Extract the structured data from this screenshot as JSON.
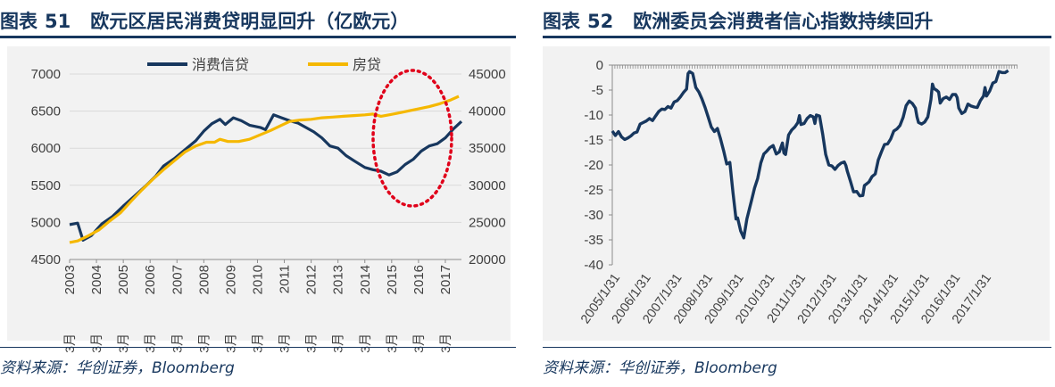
{
  "left_panel": {
    "title_prefix": "图表",
    "title_number": "51",
    "title_text": "欧元区居民消费贷明显回升（亿欧元）",
    "source": "资料来源：华创证券，Bloomberg"
  },
  "right_panel": {
    "title_prefix": "图表",
    "title_number": "52",
    "title_text": "欧洲委员会消费者信心指数持续回升",
    "source": "资料来源：华创证券，Bloomberg"
  },
  "colors": {
    "navy": "#17375e",
    "gold": "#f5b800",
    "annotation_red": "#e0001a",
    "grid": "#d9d9d9",
    "plot_bg": "#f2f2f2"
  },
  "chart_data": [
    {
      "type": "line",
      "title": "欧元区居民消费贷明显回升（亿欧元）",
      "x": [
        "3月 2003",
        "3月 2004",
        "3月 2005",
        "3月 2006",
        "3月 2007",
        "3月 2008",
        "3月 2009",
        "3月 2010",
        "3月 2011",
        "3月 2012",
        "3月 2013",
        "3月 2014",
        "3月 2015",
        "3月 2016",
        "3月 2017"
      ],
      "x_tick_years": [
        "2003",
        "2004",
        "2005",
        "2006",
        "2007",
        "2008",
        "2009",
        "2010",
        "2011",
        "2012",
        "2013",
        "2014",
        "2015",
        "2016",
        "2017"
      ],
      "x_tick_month": "3月",
      "x_range": [
        2003.0,
        2017.6
      ],
      "ylim_left": [
        4500,
        7000
      ],
      "yticks_left": [
        4500,
        5000,
        5500,
        6000,
        6500,
        7000
      ],
      "ylim_right": [
        20000,
        45000
      ],
      "yticks_right": [
        20000,
        25000,
        30000,
        35000,
        40000,
        45000
      ],
      "legend": [
        "消费信贷",
        "房贷"
      ],
      "legend_position": "top-center",
      "series": [
        {
          "name": "消费信贷",
          "axis": "left",
          "color": "#17375e",
          "points": [
            [
              2003.0,
              4970
            ],
            [
              2003.3,
              4990
            ],
            [
              2003.5,
              4760
            ],
            [
              2003.8,
              4820
            ],
            [
              2004.2,
              4980
            ],
            [
              2004.6,
              5080
            ],
            [
              2005.0,
              5220
            ],
            [
              2005.4,
              5350
            ],
            [
              2005.8,
              5480
            ],
            [
              2006.2,
              5620
            ],
            [
              2006.5,
              5760
            ],
            [
              2006.9,
              5860
            ],
            [
              2007.3,
              5980
            ],
            [
              2007.7,
              6100
            ],
            [
              2008.0,
              6230
            ],
            [
              2008.3,
              6330
            ],
            [
              2008.6,
              6390
            ],
            [
              2008.8,
              6320
            ],
            [
              2009.1,
              6410
            ],
            [
              2009.4,
              6370
            ],
            [
              2009.7,
              6310
            ],
            [
              2010.1,
              6280
            ],
            [
              2010.3,
              6250
            ],
            [
              2010.6,
              6450
            ],
            [
              2010.9,
              6410
            ],
            [
              2011.2,
              6370
            ],
            [
              2011.5,
              6340
            ],
            [
              2011.8,
              6280
            ],
            [
              2012.1,
              6220
            ],
            [
              2012.4,
              6140
            ],
            [
              2012.7,
              6030
            ],
            [
              2013.0,
              6000
            ],
            [
              2013.3,
              5900
            ],
            [
              2013.6,
              5830
            ],
            [
              2014.0,
              5740
            ],
            [
              2014.3,
              5710
            ],
            [
              2014.6,
              5690
            ],
            [
              2014.9,
              5640
            ],
            [
              2015.2,
              5680
            ],
            [
              2015.5,
              5780
            ],
            [
              2015.8,
              5850
            ],
            [
              2016.1,
              5960
            ],
            [
              2016.4,
              6030
            ],
            [
              2016.7,
              6060
            ],
            [
              2017.0,
              6140
            ],
            [
              2017.3,
              6260
            ],
            [
              2017.6,
              6360
            ]
          ]
        },
        {
          "name": "房贷",
          "axis": "right",
          "color": "#f5b800",
          "points": [
            [
              2003.0,
              22300
            ],
            [
              2003.3,
              22500
            ],
            [
              2003.7,
              23200
            ],
            [
              2004.1,
              24000
            ],
            [
              2004.5,
              25200
            ],
            [
              2004.9,
              26300
            ],
            [
              2005.3,
              27900
            ],
            [
              2005.7,
              29400
            ],
            [
              2006.1,
              30800
            ],
            [
              2006.5,
              32100
            ],
            [
              2006.9,
              33300
            ],
            [
              2007.3,
              34500
            ],
            [
              2007.7,
              35300
            ],
            [
              2008.1,
              35800
            ],
            [
              2008.4,
              35800
            ],
            [
              2008.6,
              36200
            ],
            [
              2008.9,
              35900
            ],
            [
              2009.3,
              35900
            ],
            [
              2009.7,
              36200
            ],
            [
              2010.1,
              36800
            ],
            [
              2010.5,
              37400
            ],
            [
              2010.9,
              38100
            ],
            [
              2011.2,
              38600
            ],
            [
              2011.6,
              38800
            ],
            [
              2012.0,
              38900
            ],
            [
              2012.4,
              39100
            ],
            [
              2012.8,
              39200
            ],
            [
              2013.2,
              39300
            ],
            [
              2013.6,
              39400
            ],
            [
              2014.0,
              39500
            ],
            [
              2014.3,
              39600
            ],
            [
              2014.6,
              39300
            ],
            [
              2014.9,
              39500
            ],
            [
              2015.2,
              39700
            ],
            [
              2015.6,
              40000
            ],
            [
              2016.0,
              40300
            ],
            [
              2016.4,
              40600
            ],
            [
              2016.8,
              41000
            ],
            [
              2017.2,
              41500
            ],
            [
              2017.5,
              42000
            ]
          ]
        }
      ],
      "annotation": "dotted red ellipse around the 2014–2017 rebound"
    },
    {
      "type": "line",
      "title": "欧洲委员会消费者信心指数持续回升",
      "x_tick_labels": [
        "2005/1/31",
        "2006/1/31",
        "2007/1/31",
        "2008/1/31",
        "2009/1/31",
        "2010/1/31",
        "2011/1/31",
        "2012/1/31",
        "2013/1/31",
        "2014/1/31",
        "2015/1/31",
        "2016/1/31",
        "2017/1/31"
      ],
      "x_range": [
        2005.0,
        2018.1
      ],
      "ylim": [
        -40,
        0
      ],
      "yticks": [
        0,
        -5,
        -10,
        -15,
        -20,
        -25,
        -30,
        -35,
        -40
      ],
      "series": [
        {
          "name": "消费者信心指数",
          "color": "#17375e",
          "points": [
            [
              2005.0,
              -13.2
            ],
            [
              2005.1,
              -14.1
            ],
            [
              2005.2,
              -13.3
            ],
            [
              2005.3,
              -14.4
            ],
            [
              2005.4,
              -14.9
            ],
            [
              2005.5,
              -14.6
            ],
            [
              2005.6,
              -14.2
            ],
            [
              2005.7,
              -13.6
            ],
            [
              2005.8,
              -13.4
            ],
            [
              2005.9,
              -11.8
            ],
            [
              2006.0,
              -11.5
            ],
            [
              2006.1,
              -11.2
            ],
            [
              2006.2,
              -10.7
            ],
            [
              2006.3,
              -11.1
            ],
            [
              2006.4,
              -10.2
            ],
            [
              2006.5,
              -9.3
            ],
            [
              2006.6,
              -8.8
            ],
            [
              2006.7,
              -8.9
            ],
            [
              2006.8,
              -8.3
            ],
            [
              2006.9,
              -8.6
            ],
            [
              2007.0,
              -7.4
            ],
            [
              2007.1,
              -7.1
            ],
            [
              2007.2,
              -6.4
            ],
            [
              2007.3,
              -5.5
            ],
            [
              2007.4,
              -4.8
            ],
            [
              2007.45,
              -1.7
            ],
            [
              2007.5,
              -1.3
            ],
            [
              2007.6,
              -1.7
            ],
            [
              2007.7,
              -4.5
            ],
            [
              2007.8,
              -5.4
            ],
            [
              2007.9,
              -6.8
            ],
            [
              2008.0,
              -8.5
            ],
            [
              2008.1,
              -10.4
            ],
            [
              2008.2,
              -12.4
            ],
            [
              2008.3,
              -13.3
            ],
            [
              2008.4,
              -12.7
            ],
            [
              2008.5,
              -14.8
            ],
            [
              2008.6,
              -17.2
            ],
            [
              2008.7,
              -19.8
            ],
            [
              2008.8,
              -19.5
            ],
            [
              2008.9,
              -25.5
            ],
            [
              2009.0,
              -30.8
            ],
            [
              2009.05,
              -30.6
            ],
            [
              2009.15,
              -33.2
            ],
            [
              2009.25,
              -34.6
            ],
            [
              2009.35,
              -30.8
            ],
            [
              2009.5,
              -27.1
            ],
            [
              2009.6,
              -24.6
            ],
            [
              2009.7,
              -22.7
            ],
            [
              2009.8,
              -19.6
            ],
            [
              2009.9,
              -17.8
            ],
            [
              2010.0,
              -17.2
            ],
            [
              2010.1,
              -16.5
            ],
            [
              2010.2,
              -16.1
            ],
            [
              2010.3,
              -17.8
            ],
            [
              2010.4,
              -17.4
            ],
            [
              2010.5,
              -15.6
            ],
            [
              2010.55,
              -17.6
            ],
            [
              2010.6,
              -17.9
            ],
            [
              2010.7,
              -14.0
            ],
            [
              2010.8,
              -13.0
            ],
            [
              2010.9,
              -12.4
            ],
            [
              2011.0,
              -11.5
            ],
            [
              2011.05,
              -10.1
            ],
            [
              2011.1,
              -11.9
            ],
            [
              2011.2,
              -11.7
            ],
            [
              2011.3,
              -10.7
            ],
            [
              2011.4,
              -10.1
            ],
            [
              2011.5,
              -10.4
            ],
            [
              2011.55,
              -11.7
            ],
            [
              2011.6,
              -10.0
            ],
            [
              2011.7,
              -10.2
            ],
            [
              2011.8,
              -13.8
            ],
            [
              2011.9,
              -17.9
            ],
            [
              2012.0,
              -20.0
            ],
            [
              2012.1,
              -20.2
            ],
            [
              2012.2,
              -20.9
            ],
            [
              2012.3,
              -20.1
            ],
            [
              2012.4,
              -19.6
            ],
            [
              2012.5,
              -19.4
            ],
            [
              2012.55,
              -20.1
            ],
            [
              2012.6,
              -21.3
            ],
            [
              2012.7,
              -23.3
            ],
            [
              2012.8,
              -25.4
            ],
            [
              2012.9,
              -25.3
            ],
            [
              2013.0,
              -26.2
            ],
            [
              2013.1,
              -26.1
            ],
            [
              2013.15,
              -24.1
            ],
            [
              2013.2,
              -23.9
            ],
            [
              2013.3,
              -23.4
            ],
            [
              2013.4,
              -22.3
            ],
            [
              2013.5,
              -21.8
            ],
            [
              2013.6,
              -19.0
            ],
            [
              2013.7,
              -17.4
            ],
            [
              2013.8,
              -15.9
            ],
            [
              2013.9,
              -15.8
            ],
            [
              2014.0,
              -14.8
            ],
            [
              2014.1,
              -13.2
            ],
            [
              2014.2,
              -12.8
            ],
            [
              2014.3,
              -12.1
            ],
            [
              2014.4,
              -10.5
            ],
            [
              2014.5,
              -8.1
            ],
            [
              2014.6,
              -7.2
            ],
            [
              2014.7,
              -7.7
            ],
            [
              2014.8,
              -8.6
            ],
            [
              2014.85,
              -10.4
            ],
            [
              2014.9,
              -11.5
            ],
            [
              2015.0,
              -11.8
            ],
            [
              2015.1,
              -11.4
            ],
            [
              2015.2,
              -10.4
            ],
            [
              2015.3,
              -6.9
            ],
            [
              2015.35,
              -3.8
            ],
            [
              2015.4,
              -4.7
            ],
            [
              2015.5,
              -5.1
            ],
            [
              2015.55,
              -5.4
            ],
            [
              2015.6,
              -7.6
            ],
            [
              2015.7,
              -6.7
            ],
            [
              2015.8,
              -6.4
            ],
            [
              2015.9,
              -6.9
            ],
            [
              2016.0,
              -5.9
            ],
            [
              2016.1,
              -5.9
            ],
            [
              2016.15,
              -6.5
            ],
            [
              2016.2,
              -8.6
            ],
            [
              2016.3,
              -9.7
            ],
            [
              2016.4,
              -9.3
            ],
            [
              2016.5,
              -7.8
            ],
            [
              2016.6,
              -8.2
            ],
            [
              2016.7,
              -8.4
            ],
            [
              2016.8,
              -8.5
            ],
            [
              2016.9,
              -7.1
            ],
            [
              2017.0,
              -6.2
            ],
            [
              2017.05,
              -4.5
            ],
            [
              2017.1,
              -6.2
            ],
            [
              2017.2,
              -5.2
            ],
            [
              2017.3,
              -3.6
            ],
            [
              2017.4,
              -3.3
            ],
            [
              2017.5,
              -1.3
            ],
            [
              2017.6,
              -1.5
            ],
            [
              2017.7,
              -1.5
            ],
            [
              2017.8,
              -1.1
            ]
          ]
        }
      ]
    }
  ]
}
